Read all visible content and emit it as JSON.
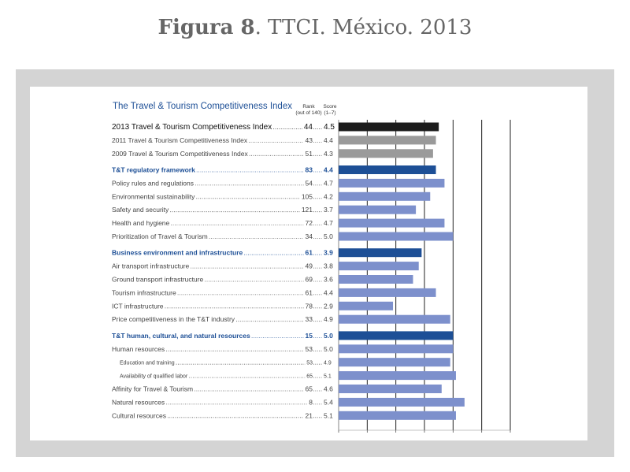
{
  "figure": {
    "label_bold": "Figura 8",
    "label_rest": ". TTCI. México. 2013"
  },
  "header": {
    "chart_title": "The Travel & Tourism Competitiveness Index",
    "rank_line1": "Rank",
    "rank_line2": "(out of 140)",
    "score_line1": "Score",
    "score_line2": "(1–7)"
  },
  "colors": {
    "overall_bar": "#1c1c1c",
    "past_bar": "#9a9a9a",
    "group_bar": "#1d4f96",
    "item_bar": "#7d90cc",
    "heading_text": "#1d4f96",
    "frame": "#d4d4d4"
  },
  "chart_data": {
    "type": "bar",
    "orientation": "horizontal",
    "xlim": [
      1,
      7
    ],
    "grid": true,
    "rows": [
      {
        "label": "2013 Travel & Tourism Competitiveness Index",
        "rank": "44",
        "score": "4.5",
        "value": 4.5,
        "kind": "overall"
      },
      {
        "label": "2011 Travel & Tourism Competitiveness Index",
        "rank": "43",
        "score": "4.4",
        "value": 4.4,
        "kind": "past"
      },
      {
        "label": "2009 Travel & Tourism Competitiveness Index",
        "rank": "51",
        "score": "4.3",
        "value": 4.3,
        "kind": "past"
      },
      {
        "label": "T&T regulatory framework",
        "rank": "83",
        "score": "4.4",
        "value": 4.4,
        "kind": "group"
      },
      {
        "label": "Policy rules and regulations",
        "rank": "54",
        "score": "4.7",
        "value": 4.7,
        "kind": "item"
      },
      {
        "label": "Environmental sustainability",
        "rank": "105",
        "score": "4.2",
        "value": 4.2,
        "kind": "item"
      },
      {
        "label": "Safety and security",
        "rank": "121",
        "score": "3.7",
        "value": 3.7,
        "kind": "item"
      },
      {
        "label": "Health and hygiene",
        "rank": "72",
        "score": "4.7",
        "value": 4.7,
        "kind": "item"
      },
      {
        "label": "Prioritization of Travel & Tourism",
        "rank": "34",
        "score": "5.0",
        "value": 5.0,
        "kind": "item"
      },
      {
        "label": "Business environment and infrastructure",
        "rank": "61",
        "score": "3.9",
        "value": 3.9,
        "kind": "group"
      },
      {
        "label": "Air transport infrastructure",
        "rank": "49",
        "score": "3.8",
        "value": 3.8,
        "kind": "item"
      },
      {
        "label": "Ground transport infrastructure",
        "rank": "69",
        "score": "3.6",
        "value": 3.6,
        "kind": "item"
      },
      {
        "label": "Tourism infrastructure",
        "rank": "61",
        "score": "4.4",
        "value": 4.4,
        "kind": "item"
      },
      {
        "label": "ICT infrastructure",
        "rank": "78",
        "score": "2.9",
        "value": 2.9,
        "kind": "item"
      },
      {
        "label": "Price competitiveness in the T&T industry",
        "rank": "33",
        "score": "4.9",
        "value": 4.9,
        "kind": "item"
      },
      {
        "label": "T&T human, cultural, and natural resources",
        "rank": "15",
        "score": "5.0",
        "value": 5.0,
        "kind": "group"
      },
      {
        "label": "Human resources",
        "rank": "53",
        "score": "5.0",
        "value": 5.0,
        "kind": "item"
      },
      {
        "label": "Education and training",
        "rank": "53",
        "score": "4.9",
        "value": 4.9,
        "kind": "subitem"
      },
      {
        "label": "Availability of qualified labor",
        "rank": "65",
        "score": "5.1",
        "value": 5.1,
        "kind": "subitem"
      },
      {
        "label": "Affinity for Travel & Tourism",
        "rank": "65",
        "score": "4.6",
        "value": 4.6,
        "kind": "item"
      },
      {
        "label": "Natural resources",
        "rank": "8",
        "score": "5.4",
        "value": 5.4,
        "kind": "item"
      },
      {
        "label": "Cultural resources",
        "rank": "21",
        "score": "5.1",
        "value": 5.1,
        "kind": "item"
      }
    ]
  }
}
